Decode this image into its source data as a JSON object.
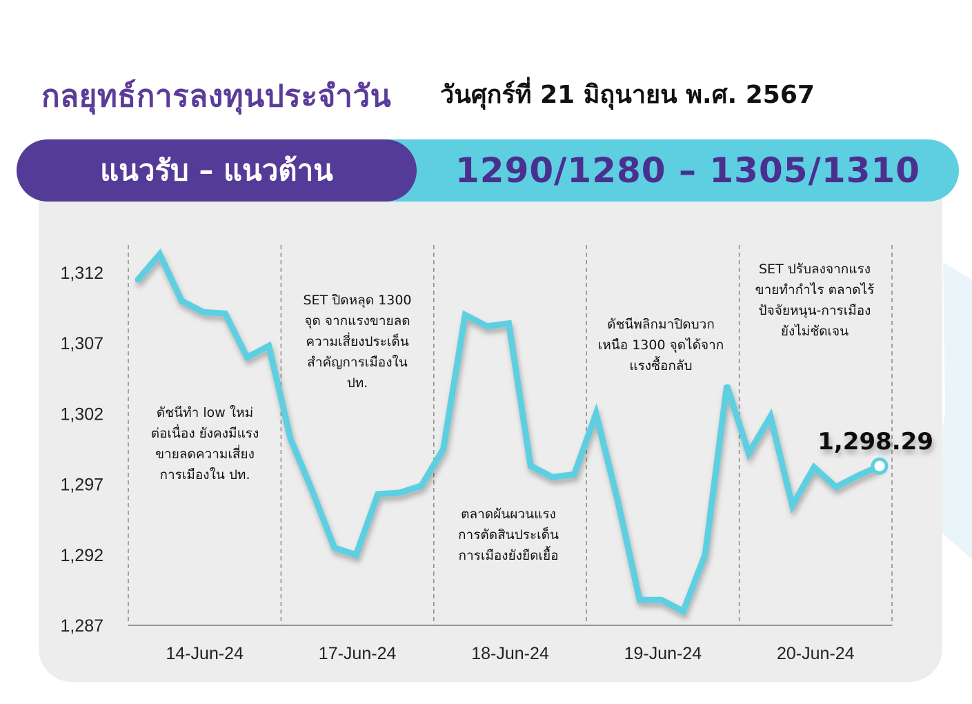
{
  "header": {
    "title": "กลยุทธ์การลงทุนประจำวัน",
    "date": "วันศุกร์ที่ 21 มิถุนายน พ.ศ. 2567"
  },
  "banner": {
    "left_label": "แนวรับ – แนวต้าน",
    "right_label": "1290/1280  –  1305/1310"
  },
  "colors": {
    "purple": "#553b98",
    "cyan": "#5dcfe0",
    "panel": "#ededed"
  },
  "chart_data": {
    "type": "line",
    "ylim": [
      1287,
      1313
    ],
    "yticks": [
      "1,312",
      "1,307",
      "1,302",
      "1,297",
      "1,292",
      "1,287"
    ],
    "ytick_values": [
      1312,
      1307,
      1302,
      1297,
      1292,
      1287
    ],
    "xtick_labels": [
      "14-Jun-24",
      "17-Jun-24",
      "18-Jun-24",
      "19-Jun-24",
      "20-Jun-24"
    ],
    "series": [
      {
        "values": [
          1311.5,
          1313.3,
          1310.0,
          1309.2,
          1309.1,
          1306.0,
          1306.8,
          1300.2,
          1296.5,
          1292.5,
          1292.0,
          1296.3,
          1296.4,
          1296.9,
          1299.5,
          1309.0,
          1308.2,
          1308.4,
          1298.3,
          1297.5,
          1297.7,
          1302.0,
          1295.8,
          1288.8,
          1288.8,
          1288.0,
          1292.0,
          1304.0,
          1299.2,
          1301.8,
          1295.5,
          1298.2,
          1296.8,
          1297.6,
          1298.29
        ]
      }
    ],
    "last_value_label": "1,298.29",
    "annotations": [
      {
        "lines": [
          "ดัชนีทำ low ใหม่",
          "ต่อเนื่อง ยังคงมีแรง",
          "ขายลดความเสี่ยง",
          "การเมืองใน ปท."
        ]
      },
      {
        "lines": [
          "SET ปิดหลุด 1300",
          "จุด จากแรงขายลด",
          "ความเสี่ยงประเด็น",
          "สำคัญการเมืองใน",
          "ปท."
        ]
      },
      {
        "lines": [
          "ตลาดผันผวนแรง",
          "การตัดสินประเด็น",
          "การเมืองยังยืดเยื้อ"
        ]
      },
      {
        "lines": [
          "ดัชนีพลิกมาปิดบวก",
          "เหนือ 1300 จุดได้จาก",
          "แรงซื้อกลับ"
        ]
      },
      {
        "lines": [
          "SET ปรับลงจากแรง",
          "ขายทำกำไร ตลาดไร้",
          "ปัจจัยหนุน-การเมือง",
          "ยังไม่ชัดเจน"
        ]
      }
    ]
  }
}
